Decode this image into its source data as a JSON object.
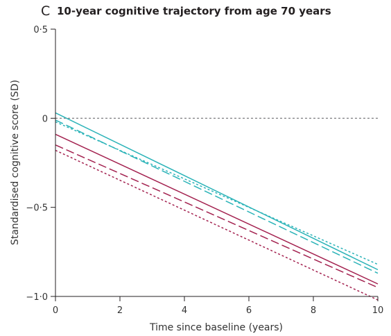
{
  "figure": {
    "panel_letter": "C",
    "title": "10-year cognitive trajectory from age 70 years"
  },
  "chart_data": {
    "type": "line",
    "title": "10-year cognitive trajectory from age 70 years",
    "xlabel": "Time since baseline (years)",
    "ylabel": "Standardised cognitive score (SD)",
    "xlim": [
      0,
      10
    ],
    "ylim": [
      -1.0,
      0.5
    ],
    "x_ticks": [
      {
        "value": 0,
        "label": "0"
      },
      {
        "value": 2,
        "label": "2"
      },
      {
        "value": 4,
        "label": "4"
      },
      {
        "value": 6,
        "label": "6"
      },
      {
        "value": 8,
        "label": "8"
      },
      {
        "value": 10,
        "label": "10"
      }
    ],
    "y_ticks": [
      {
        "value": 0.5,
        "label": "0·5"
      },
      {
        "value": 0,
        "label": "0"
      },
      {
        "value": -0.5,
        "label": "−0·5"
      },
      {
        "value": -1.0,
        "label": "−1·0"
      }
    ],
    "grid": false,
    "legend": "none",
    "reference_line": {
      "y": 0,
      "style": "dotted",
      "color": "#6d6e71"
    },
    "series": [
      {
        "x": [
          0,
          10
        ],
        "values": [
          0.03,
          -0.85
        ],
        "color": "#2bb3b8",
        "style": "solid"
      },
      {
        "x": [
          0,
          10
        ],
        "values": [
          -0.01,
          -0.87
        ],
        "color": "#2bb3b8",
        "style": "dashed"
      },
      {
        "x": [
          0,
          10
        ],
        "values": [
          -0.02,
          -0.82
        ],
        "color": "#2bb3b8",
        "style": "dotted"
      },
      {
        "x": [
          0,
          10
        ],
        "values": [
          -0.09,
          -0.93
        ],
        "color": "#a3214f",
        "style": "solid"
      },
      {
        "x": [
          0,
          10
        ],
        "values": [
          -0.15,
          -0.95
        ],
        "color": "#a3214f",
        "style": "dashed"
      },
      {
        "x": [
          0,
          10
        ],
        "values": [
          -0.18,
          -1.02
        ],
        "color": "#a3214f",
        "style": "dotted"
      }
    ]
  }
}
